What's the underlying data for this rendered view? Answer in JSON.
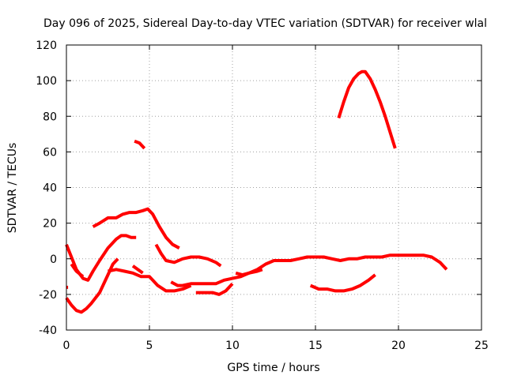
{
  "chart_data": {
    "type": "line",
    "title": "Day 096 of 2025, Sidereal Day-to-day VTEC variation (SDTVAR) for receiver wlal",
    "xlabel": "GPS time / hours",
    "ylabel": "SDTVAR / TECUs",
    "xlim": [
      0,
      25
    ],
    "ylim": [
      -40,
      120
    ],
    "xticks": [
      "0",
      "5",
      "10",
      "15",
      "20",
      "25"
    ],
    "yticks": [
      "-40",
      "-20",
      "0",
      "20",
      "40",
      "60",
      "80",
      "100",
      "120"
    ],
    "grid": true,
    "color": "#ff0000",
    "series": [
      {
        "name": "s1",
        "x": [
          0,
          0.3,
          0.6,
          1,
          1.3,
          1.6,
          2,
          2.5,
          3,
          3.3,
          3.6,
          3.9,
          4.2
        ],
        "y": [
          8,
          1,
          -6,
          -11,
          -12,
          -7,
          -1,
          6,
          11,
          13,
          13,
          12,
          12
        ]
      },
      {
        "name": "s2",
        "x": [
          0,
          0.3,
          0.6,
          0.9,
          1.2,
          1.5,
          2,
          2.5,
          2.8,
          3.1
        ],
        "y": [
          -22,
          -26,
          -29,
          -30,
          -28,
          -25,
          -19,
          -9,
          -3,
          0
        ]
      },
      {
        "name": "s3",
        "x": [
          0,
          0.1
        ],
        "y": [
          -16,
          -16
        ]
      },
      {
        "name": "s4",
        "x": [
          0.3,
          0.6,
          1
        ],
        "y": [
          -3,
          -7,
          -10
        ]
      },
      {
        "name": "s5",
        "x": [
          1.6,
          2,
          2.5,
          3,
          3.4,
          3.8,
          4.2,
          4.6,
          4.9,
          5.2,
          5.6,
          6,
          6.4,
          6.8
        ],
        "y": [
          18,
          20,
          23,
          23,
          25,
          26,
          26,
          27,
          28,
          25,
          18,
          12,
          8,
          6
        ]
      },
      {
        "name": "s6",
        "x": [
          2.5,
          3,
          3.5,
          4,
          4.5,
          5,
          5.5,
          6,
          6.5,
          7,
          7.5
        ],
        "y": [
          -7,
          -6,
          -7,
          -8,
          -10,
          -10,
          -15,
          -18,
          -18,
          -17,
          -15
        ]
      },
      {
        "name": "s7",
        "x": [
          4.0,
          4.3,
          4.6
        ],
        "y": [
          -4,
          -6,
          -8
        ]
      },
      {
        "name": "s8",
        "x": [
          4.1,
          4.4,
          4.7
        ],
        "y": [
          66,
          65,
          62
        ]
      },
      {
        "name": "s9",
        "x": [
          5.4,
          5.7,
          6,
          6.5,
          7,
          7.5,
          8,
          8.5,
          9.0,
          9.3
        ],
        "y": [
          8,
          3,
          -1,
          -2,
          0,
          1,
          1,
          0,
          -2,
          -4
        ]
      },
      {
        "name": "s10",
        "x": [
          6.3,
          6.7,
          7,
          7.5,
          8,
          8.5,
          9,
          9.5,
          10,
          10.5,
          11,
          11.5,
          12,
          12.5,
          13,
          13.5,
          14,
          14.5,
          15,
          15.5,
          16,
          16.5,
          17,
          17.5,
          18,
          18.5,
          19,
          19.5,
          20,
          20.5,
          21,
          21.5,
          22,
          22.5,
          22.9
        ],
        "y": [
          -13,
          -15,
          -15,
          -14,
          -14,
          -14,
          -14,
          -12,
          -11,
          -10,
          -8,
          -6,
          -3,
          -1,
          -1,
          -1,
          0,
          1,
          1,
          1,
          0,
          -1,
          0,
          0,
          1,
          1,
          1,
          2,
          2,
          2,
          2,
          2,
          1,
          -2,
          -6
        ]
      },
      {
        "name": "s11",
        "x": [
          7.8,
          8.3,
          8.8,
          9.2,
          9.6,
          10
        ],
        "y": [
          -19,
          -19,
          -19,
          -20,
          -18,
          -14
        ]
      },
      {
        "name": "s12",
        "x": [
          10.2,
          10.6,
          11,
          11.5,
          11.8
        ],
        "y": [
          -8,
          -9,
          -8,
          -7,
          -6
        ]
      },
      {
        "name": "s13",
        "x": [
          14.7,
          15.2,
          15.7,
          16.2,
          16.7,
          17.2,
          17.7,
          18.2,
          18.6
        ],
        "y": [
          -15,
          -17,
          -17,
          -18,
          -18,
          -17,
          -15,
          -12,
          -9
        ]
      },
      {
        "name": "s14",
        "x": [
          16.4,
          16.7,
          17,
          17.3,
          17.6,
          17.8,
          18.0,
          18.3,
          18.6,
          18.9,
          19.2,
          19.5,
          19.8
        ],
        "y": [
          79,
          88,
          96,
          101,
          104,
          105,
          105,
          101,
          95,
          88,
          80,
          71,
          62
        ]
      }
    ]
  }
}
